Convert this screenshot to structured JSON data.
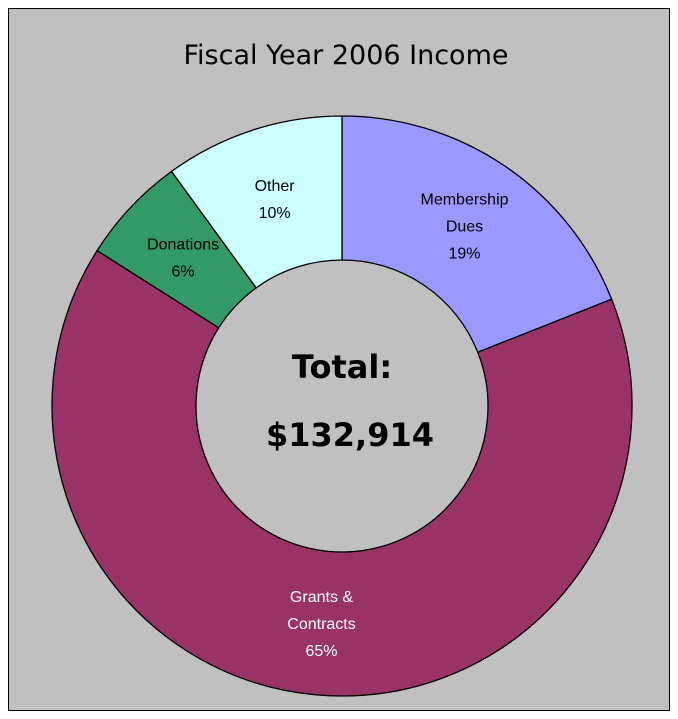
{
  "chart_data": {
    "type": "pie",
    "variant": "doughnut",
    "title": "Fiscal Year 2006 Income",
    "center_label": "Total:",
    "center_value": "$132,914",
    "slices": [
      {
        "label_lines": [
          "Membership",
          "Dues"
        ],
        "percent_label": "19%",
        "value": 19,
        "color": "#9999ff",
        "text_color": "#000000"
      },
      {
        "label_lines": [
          "Grants &",
          "Contracts"
        ],
        "percent_label": "65%",
        "value": 65,
        "color": "#993366",
        "text_color": "#ffffff"
      },
      {
        "label_lines": [
          "Donations"
        ],
        "percent_label": "6%",
        "value": 6,
        "color": "#339966",
        "text_color": "#000000"
      },
      {
        "label_lines": [
          "Other"
        ],
        "percent_label": "10%",
        "value": 10,
        "color": "#ccffff",
        "text_color": "#000000"
      }
    ],
    "background_color": "#c0c0c0",
    "legend": "none"
  }
}
